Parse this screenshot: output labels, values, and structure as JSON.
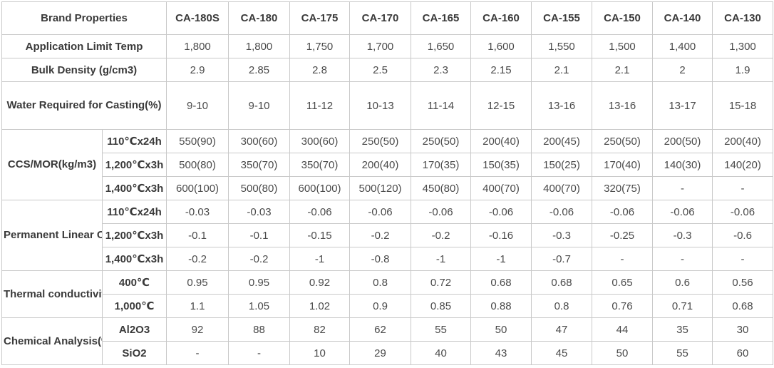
{
  "header": {
    "first": "Brand Properties",
    "brands": [
      "CA-180S",
      "CA-180",
      "CA-175",
      "CA-170",
      "CA-165",
      "CA-160",
      "CA-155",
      "CA-150",
      "CA-140",
      "CA-130"
    ]
  },
  "rows": {
    "app_limit": {
      "label": "Application Limit Temp",
      "values": [
        "1,800",
        "1,800",
        "1,750",
        "1,700",
        "1,650",
        "1,600",
        "1,550",
        "1,500",
        "1,400",
        "1,300"
      ]
    },
    "bulk_density": {
      "label": "Bulk Density (g/cm3)",
      "values": [
        "2.9",
        "2.85",
        "2.8",
        "2.5",
        "2.3",
        "2.15",
        "2.1",
        "2.1",
        "2",
        "1.9"
      ]
    },
    "water": {
      "label": "Water Required for Casting(%)",
      "values": [
        "9-10",
        "9-10",
        "11-12",
        "10-13",
        "11-14",
        "12-15",
        "13-16",
        "13-16",
        "13-17",
        "15-18"
      ]
    },
    "ccs": {
      "label": "CCS/MOR(kg/m3)",
      "sub": [
        {
          "label": "110℃x24h",
          "values": [
            "550(90)",
            "300(60)",
            "300(60)",
            "250(50)",
            "250(50)",
            "200(40)",
            "200(45)",
            "250(50)",
            "200(50)",
            "200(40)"
          ]
        },
        {
          "label": "1,200℃x3h",
          "values": [
            "500(80)",
            "350(70)",
            "350(70)",
            "200(40)",
            "170(35)",
            "150(35)",
            "150(25)",
            "170(40)",
            "140(30)",
            "140(20)"
          ]
        },
        {
          "label": "1,400℃x3h",
          "values": [
            "600(100)",
            "500(80)",
            "600(100)",
            "500(120)",
            "450(80)",
            "400(70)",
            "400(70)",
            "320(75)",
            "-",
            "-"
          ]
        }
      ]
    },
    "plc": {
      "label": "Permanent Linear Change (%)",
      "sub": [
        {
          "label": "110℃x24h",
          "values": [
            "-0.03",
            "-0.03",
            "-0.06",
            "-0.06",
            "-0.06",
            "-0.06",
            "-0.06",
            "-0.06",
            "-0.06",
            "-0.06"
          ]
        },
        {
          "label": "1,200℃x3h",
          "values": [
            "-0.1",
            "-0.1",
            "-0.15",
            "-0.2",
            "-0.2",
            "-0.16",
            "-0.3",
            "-0.25",
            "-0.3",
            "-0.6"
          ]
        },
        {
          "label": "1,400℃x3h",
          "values": [
            "-0.2",
            "-0.2",
            "-1",
            "-0.8",
            "-1",
            "-1",
            "-0.7",
            "-",
            "-",
            "-"
          ]
        }
      ]
    },
    "thermal": {
      "label": "Thermal conductivity (W/m.k)",
      "sub": [
        {
          "label": "400℃",
          "values": [
            "0.95",
            "0.95",
            "0.92",
            "0.8",
            "0.72",
            "0.68",
            "0.68",
            "0.65",
            "0.6",
            "0.56"
          ]
        },
        {
          "label": "1,000℃",
          "values": [
            "1.1",
            "1.05",
            "1.02",
            "0.9",
            "0.85",
            "0.88",
            "0.8",
            "0.76",
            "0.71",
            "0.68"
          ]
        }
      ]
    },
    "chem": {
      "label": "Chemical Analysis(%)",
      "sub": [
        {
          "label": "Al2O3",
          "values": [
            "92",
            "88",
            "82",
            "62",
            "55",
            "50",
            "47",
            "44",
            "35",
            "30"
          ]
        },
        {
          "label": "SiO2",
          "values": [
            "-",
            "-",
            "10",
            "29",
            "40",
            "43",
            "45",
            "50",
            "55",
            "60"
          ]
        }
      ]
    }
  }
}
